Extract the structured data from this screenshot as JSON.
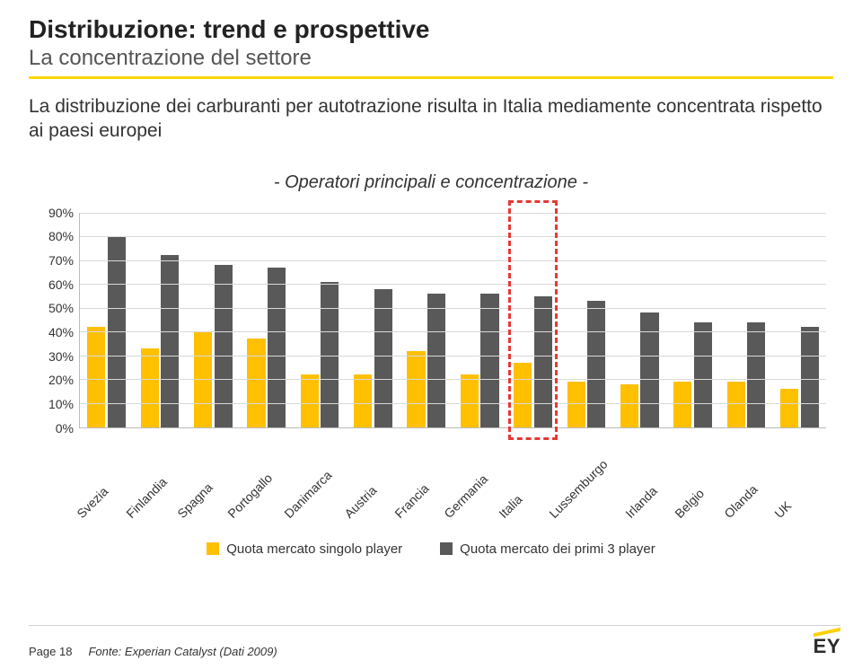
{
  "header": {
    "title": "Distribuzione: trend e prospettive",
    "subtitle": "La concentrazione del settore"
  },
  "body_text": "La distribuzione dei carburanti per autotrazione risulta in Italia mediamente concentrata rispetto ai paesi europei",
  "chart": {
    "caption": "- Operatori principali e concentrazione -",
    "type": "bar",
    "y": {
      "min": 0,
      "max": 90,
      "step": 10,
      "ticks": [
        "0%",
        "10%",
        "20%",
        "30%",
        "40%",
        "50%",
        "60%",
        "70%",
        "80%",
        "90%"
      ]
    },
    "categories": [
      "Svezia",
      "Finlandia",
      "Spagna",
      "Portogallo",
      "Danimarca",
      "Austria",
      "Francia",
      "Germania",
      "Italia",
      "Lussemburgo",
      "Irlanda",
      "Belgio",
      "Olanda",
      "UK"
    ],
    "series": [
      {
        "name": "Quota mercato singolo player",
        "color": "#ffc000",
        "values": [
          42,
          33,
          40,
          37,
          22,
          22,
          32,
          22,
          27,
          19,
          18,
          19,
          19,
          16
        ]
      },
      {
        "name": "Quota mercato dei primi 3 player",
        "color": "#595959",
        "values": [
          80,
          72,
          68,
          67,
          61,
          58,
          56,
          56,
          55,
          53,
          48,
          44,
          44,
          42
        ]
      }
    ],
    "highlight_index": 8,
    "highlight_color": "#e53935",
    "grid_color": "#d9d9d9",
    "axis_color": "#bbbbbb",
    "background_color": "#ffffff",
    "label_fontsize": 14
  },
  "footer": {
    "page_label": "Page 18",
    "source": "Fonte: Experian Catalyst  (Dati 2009)",
    "logo_text": "EY"
  }
}
